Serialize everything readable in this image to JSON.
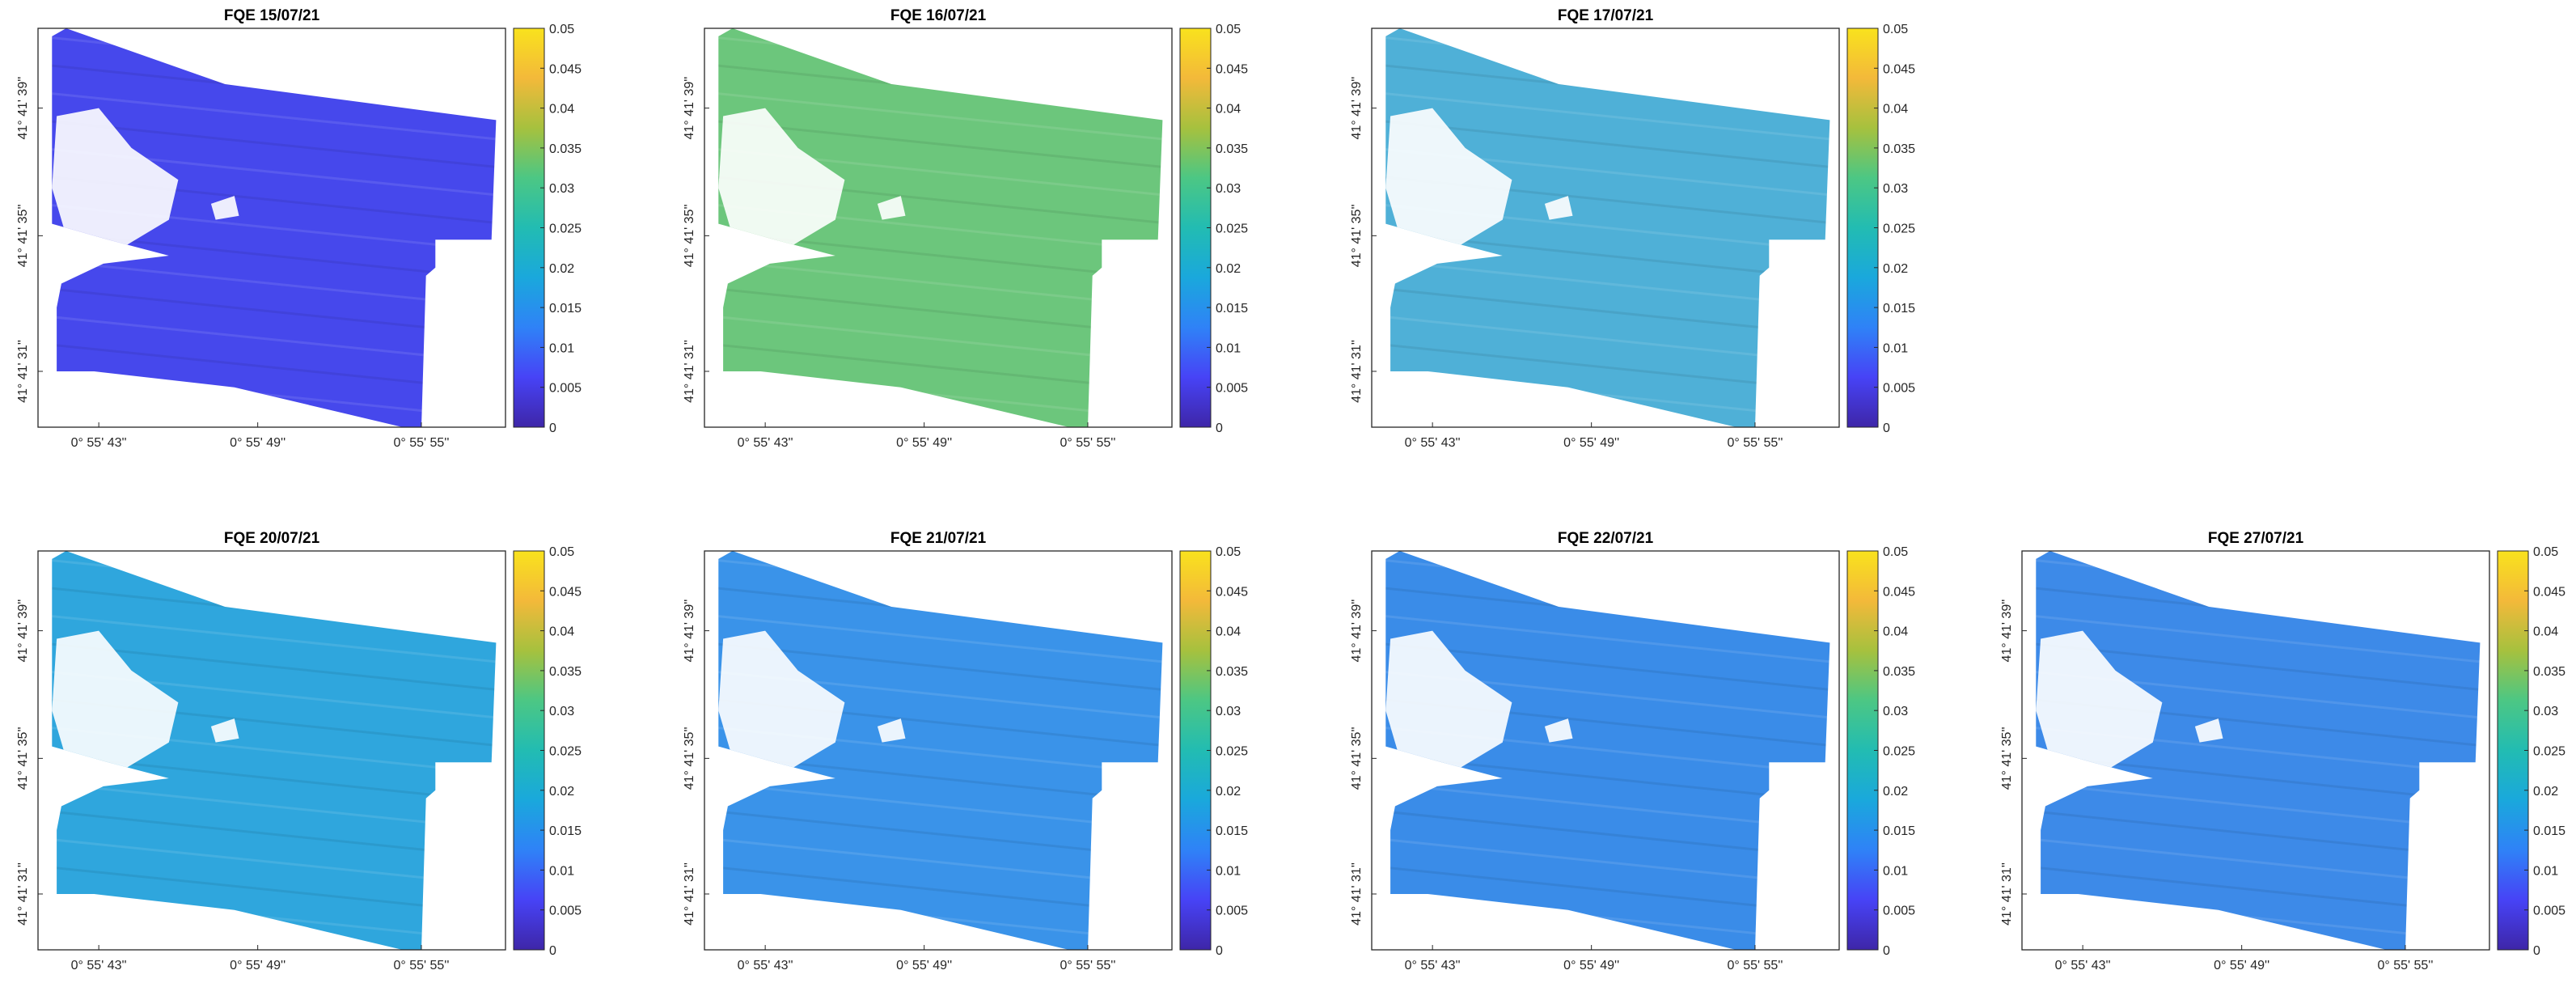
{
  "figure": {
    "colormap": [
      "#3e26a8",
      "#4743f6",
      "#2f82f7",
      "#1aa8dc",
      "#22bcb2",
      "#4cc784",
      "#a6c13e",
      "#f3b93a",
      "#f9e21d"
    ],
    "field_colors": {
      "fqe_15_07_21": "#4648ec",
      "fqe_16_07_21": "#6cc67c",
      "fqe_17_07_21": "#4fb0d7",
      "fqe_20_07_21": "#2fa6dd",
      "fqe_21_07_21": "#3a93e9",
      "fqe_22_07_21": "#3a8ce8",
      "fqe_27_07_21": "#3d8ae8"
    }
  },
  "chart_data": [
    {
      "id": "fqe_15_07_21",
      "type": "heatmap",
      "title": "FQE 15/07/21",
      "x_ticks": [
        "0° 55' 43''",
        "0° 55' 49''",
        "0° 55' 55''"
      ],
      "y_ticks": [
        "41° 41' 39''",
        "41° 41' 35''",
        "41° 41' 31''"
      ],
      "colorbar": {
        "range": [
          0,
          0.05
        ],
        "ticks": [
          "0",
          "0.005",
          "0.01",
          "0.015",
          "0.02",
          "0.025",
          "0.03",
          "0.035",
          "0.04",
          "0.045",
          "0.05"
        ]
      }
    },
    {
      "id": "fqe_16_07_21",
      "type": "heatmap",
      "title": "FQE 16/07/21",
      "x_ticks": [
        "0° 55' 43''",
        "0° 55' 49''",
        "0° 55' 55''"
      ],
      "y_ticks": [
        "41° 41' 39''",
        "41° 41' 35''",
        "41° 41' 31''"
      ],
      "colorbar": {
        "range": [
          0,
          0.05
        ],
        "ticks": [
          "0",
          "0.005",
          "0.01",
          "0.015",
          "0.02",
          "0.025",
          "0.03",
          "0.035",
          "0.04",
          "0.045",
          "0.05"
        ]
      }
    },
    {
      "id": "fqe_17_07_21",
      "type": "heatmap",
      "title": "FQE 17/07/21",
      "x_ticks": [
        "0° 55' 43''",
        "0° 55' 49''",
        "0° 55' 55''"
      ],
      "y_ticks": [
        "41° 41' 39''",
        "41° 41' 35''",
        "41° 41' 31''"
      ],
      "colorbar": {
        "range": [
          0,
          0.05
        ],
        "ticks": [
          "0",
          "0.005",
          "0.01",
          "0.015",
          "0.02",
          "0.025",
          "0.03",
          "0.035",
          "0.04",
          "0.045",
          "0.05"
        ]
      }
    },
    {
      "id": "fqe_20_07_21",
      "type": "heatmap",
      "title": "FQE 20/07/21",
      "x_ticks": [
        "0° 55' 43''",
        "0° 55' 49''",
        "0° 55' 55''"
      ],
      "y_ticks": [
        "41° 41' 39''",
        "41° 41' 35''",
        "41° 41' 31''"
      ],
      "colorbar": {
        "range": [
          0,
          0.05
        ],
        "ticks": [
          "0",
          "0.005",
          "0.01",
          "0.015",
          "0.02",
          "0.025",
          "0.03",
          "0.035",
          "0.04",
          "0.045",
          "0.05"
        ]
      }
    },
    {
      "id": "fqe_21_07_21",
      "type": "heatmap",
      "title": "FQE 21/07/21",
      "x_ticks": [
        "0° 55' 43''",
        "0° 55' 49''",
        "0° 55' 55''"
      ],
      "y_ticks": [
        "41° 41' 39''",
        "41° 41' 35''",
        "41° 41' 31''"
      ],
      "colorbar": {
        "range": [
          0,
          0.05
        ],
        "ticks": [
          "0",
          "0.005",
          "0.01",
          "0.015",
          "0.02",
          "0.025",
          "0.03",
          "0.035",
          "0.04",
          "0.045",
          "0.05"
        ]
      }
    },
    {
      "id": "fqe_22_07_21",
      "type": "heatmap",
      "title": "FQE 22/07/21",
      "x_ticks": [
        "0° 55' 43''",
        "0° 55' 49''",
        "0° 55' 55''"
      ],
      "y_ticks": [
        "41° 41' 39''",
        "41° 41' 35''",
        "41° 41' 31''"
      ],
      "colorbar": {
        "range": [
          0,
          0.05
        ],
        "ticks": [
          "0",
          "0.005",
          "0.01",
          "0.015",
          "0.02",
          "0.025",
          "0.03",
          "0.035",
          "0.04",
          "0.045",
          "0.05"
        ]
      }
    },
    {
      "id": "fqe_27_07_21",
      "type": "heatmap",
      "title": "FQE 27/07/21",
      "x_ticks": [
        "0° 55' 43''",
        "0° 55' 49''",
        "0° 55' 55''"
      ],
      "y_ticks": [
        "41° 41' 39''",
        "41° 41' 35''",
        "41° 41' 31''"
      ],
      "colorbar": {
        "range": [
          0,
          0.05
        ],
        "ticks": [
          "0",
          "0.005",
          "0.01",
          "0.015",
          "0.02",
          "0.025",
          "0.03",
          "0.035",
          "0.04",
          "0.045",
          "0.05"
        ]
      }
    }
  ]
}
